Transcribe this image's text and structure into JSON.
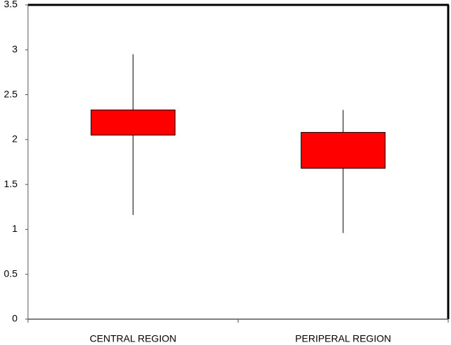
{
  "chart_data": {
    "type": "box",
    "categories": [
      "CENTRAL REGION",
      "PERIPERAL REGION"
    ],
    "min": [
      1.16,
      0.96
    ],
    "q1": [
      2.05,
      1.68
    ],
    "q3": [
      2.33,
      2.08
    ],
    "max": [
      2.95,
      2.33
    ],
    "color": "#ff0000",
    "ylim": [
      0,
      3.5
    ],
    "yticks": [
      0,
      0.5,
      1,
      1.5,
      2,
      2.5,
      3,
      3.5
    ],
    "grid": false
  }
}
